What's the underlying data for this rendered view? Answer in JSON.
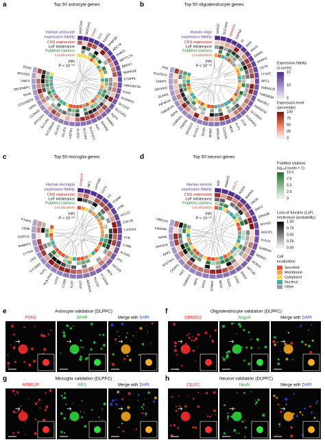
{
  "panels": [
    {
      "letter": "a",
      "title": "Top 50 astrocyte genes",
      "fidelity_label": [
        "Human astrocyte",
        "expression fidelity"
      ],
      "rings": [
        "CNS expression",
        "LoF intolerance",
        "PubMed citations",
        "Localization"
      ],
      "ppi": "PPI",
      "p_value": "P < 10⁻¹⁰",
      "genes": [
        "NOTCH3",
        "NOTCH2",
        "PON2",
        "CLU",
        "FGFR3",
        "PPAP2B",
        "ADCY8",
        "RAB31",
        "METTL7A",
        "BBOX1",
        "BMPR1B",
        "ETNPPL",
        "ARHGEF26",
        "GJA1",
        "ALDH6A1",
        "SLC1A2",
        "SLC14A1",
        "AQP4",
        "PAMR1",
        "EDNRB",
        "AGT",
        "SLCO1C1",
        "SLC4A4",
        "ALDH2",
        "HEPN1",
        "GLUD1",
        "GLUD2",
        "SLC25A18",
        "SLC1A3",
        "ATP13A4",
        "CLDN10",
        "LRP4",
        "CDC42EP4",
        "PAX6",
        "SELENBP1",
        "TIMP3",
        "APCDD1",
        "SOX9"
      ],
      "highlight": 2
    },
    {
      "letter": "b",
      "title": "Top 50 oligodendrocyte genes",
      "fidelity_label": [
        "Human oligo",
        "expression fidelity"
      ],
      "rings": [
        "CNS expression",
        "LoF intolerance",
        "PubMed citations",
        "Localization"
      ],
      "ppi": "PPI",
      "p_value": "P < 10⁻¹⁰",
      "genes": [
        "GPR37",
        "SLC44A1",
        "DBNDD2",
        "CAPN3",
        "TF",
        "MAG",
        "ANLN",
        "ERMN",
        "ENPP2",
        "UGT8",
        "TTYH2",
        "NPC1",
        "TMEM125",
        "TMEM63A",
        "RNASE1",
        "FAM107B",
        "SLC45A3",
        "PLEKHH1",
        "ST18",
        "PLP1",
        "MOG",
        "CLDN11",
        "OPALIN",
        "MOBP",
        "GLDN",
        "ELOVL7",
        "SPOCK3",
        "PSEN1",
        "CARNS1",
        "ASPA",
        "TMEM144",
        "PIP4K2A",
        "SLAIN1",
        "ZDHHC9",
        "CNDP1",
        "PLA2G16",
        "PXK"
      ],
      "highlight": 2
    },
    {
      "letter": "c",
      "title": "Top 50 microglia genes",
      "fidelity_label": [
        "Human microglia",
        "expression fidelity"
      ],
      "rings": [
        "CNS expression",
        "LoF intolerance",
        "PubMed citations",
        "Localization"
      ],
      "ppi": "PPI",
      "p_value": "P < 10⁻¹⁰",
      "genes": [
        "APBB1IP",
        "AIF1",
        "LAPTM5",
        "CD74",
        "C3",
        "ITGAM",
        "LY86",
        "HCLS1",
        "CSF1R",
        "CX3CR1",
        "FYB",
        "CYBB",
        "ALOX5",
        "SYK",
        "DOCK8",
        "IRF8",
        "FCGR2A",
        "PLCG2",
        "ADORA3",
        "CD14",
        "TLR7",
        "C1QB",
        "LCP2",
        "HLA-DRA",
        "TLR1",
        "PYCARD",
        "LAT2",
        "CYTH4",
        "RHBDF2",
        "P2RY12",
        "CD86",
        "PTAFR"
      ],
      "highlight": 0
    },
    {
      "letter": "d",
      "title": "Top 50 neuron genes",
      "fidelity_label": [
        "Human neuron",
        "expression fidelity"
      ],
      "rings": [
        "CNS expression",
        "LoF intolerance",
        "PubMed citations",
        "Localization"
      ],
      "ppi": "PPI",
      "p_value": "P < 10⁻¹⁰",
      "genes": [
        "NSF",
        "SNAP25",
        "CELF2",
        "RGS4",
        "MAPK9",
        "SNCB",
        "DKK3",
        "GRIN2B",
        "MYH10",
        "NDFIP1",
        "SYNJ1",
        "GABRA4",
        "WDR47",
        "NCEH1",
        "NPTXR",
        "ENO2",
        "CHN1",
        "GAD1",
        "BEX1",
        "STMN2",
        "RTN1",
        "NEFL",
        "GABRG2",
        "NNT",
        "CADPS",
        "SULT4A1",
        "AAK1",
        "PPP3CA",
        "NAPB",
        "FAM49A",
        "UBE2V2"
      ],
      "highlight": 2
    }
  ],
  "legend": {
    "fidelity": {
      "title": [
        "Expression fidelity",
        "(z-score)"
      ],
      "ticks": [
        "15",
        "10",
        "5"
      ]
    },
    "level": {
      "title": [
        "Expression level",
        "(percentile)"
      ],
      "ticks": [
        "100",
        "75",
        "50",
        "25",
        "0"
      ]
    },
    "pubmed": {
      "title": [
        "PubMed citations",
        "log₁₀(counts + 1)"
      ],
      "ticks": [
        "10.0",
        "7.5",
        "5.0",
        "2.5",
        "0"
      ]
    },
    "lof": {
      "title": [
        "Loss-of-function (LoF)",
        "intolerance (probability)"
      ],
      "ticks": [
        "1.00",
        "0.75",
        "0.50",
        "0.25",
        "0.00"
      ]
    },
    "localization": {
      "title": [
        "Cell",
        "localization"
      ],
      "items": [
        "Secreted",
        "Membrane",
        "Cytoplasm",
        "Nucleus",
        "Other"
      ]
    }
  },
  "validation": [
    {
      "letter": "e",
      "title": "Astrocyte validation (DLPFC)",
      "marker": "PON2",
      "cell_marker": "GFAP",
      "merge": "Merge with",
      "dapi": "DAPI"
    },
    {
      "letter": "f",
      "title": "Oligodendrocyte validation (DLPFC)",
      "marker": "DBNDD2",
      "cell_marker": "NogoA",
      "merge": "Merge with",
      "dapi": "DAPI"
    },
    {
      "letter": "g",
      "title": "Microglia validation (DLPFC)",
      "marker": "APBB1IP",
      "cell_marker": "AIF1",
      "merge": "Merge with",
      "dapi": "DAPI"
    },
    {
      "letter": "h",
      "title": "Neuron validation (DLPFC)",
      "marker": "CELF2",
      "cell_marker": "NeuN",
      "merge": "Merge with",
      "dapi": "DAPI"
    }
  ]
}
